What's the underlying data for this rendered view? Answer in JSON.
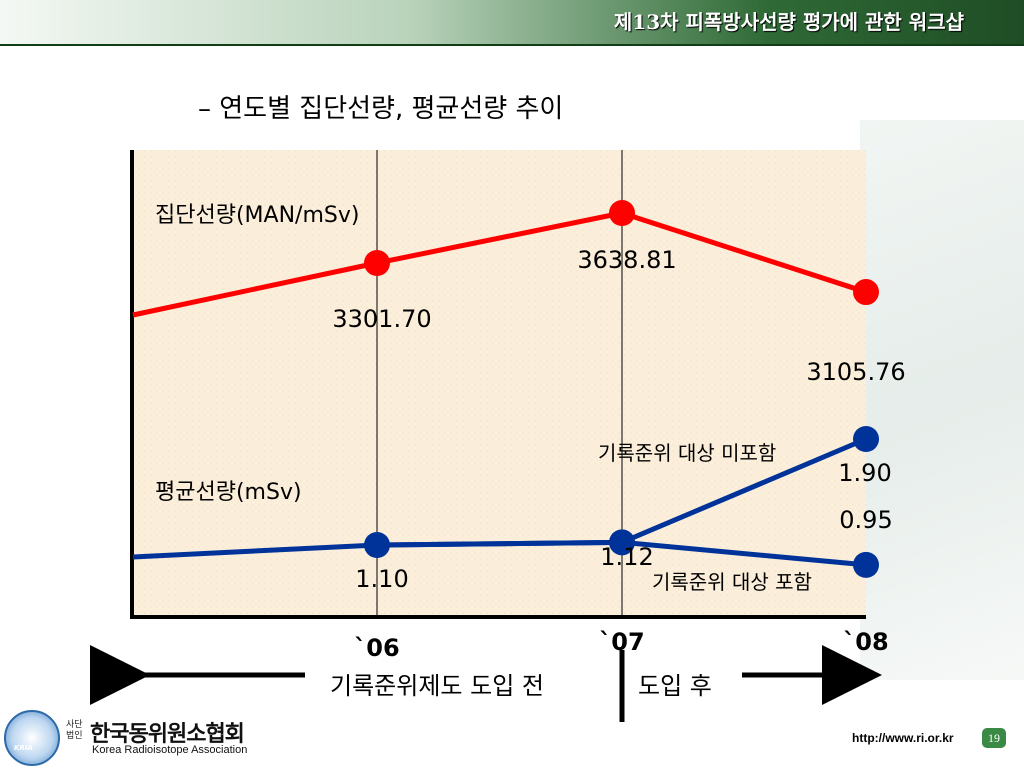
{
  "header": {
    "title": "제13차 피폭방사선량 평가에 관한 워크샵"
  },
  "subtitle": "–  연도별 집단선량, 평균선량 추이",
  "chart_data": {
    "type": "line",
    "categories": [
      "`06",
      "`07",
      "`08"
    ],
    "series": [
      {
        "name": "집단선량(MAN/mSv)",
        "values": [
          3301.7,
          3638.81,
          3105.76
        ],
        "labels": [
          "3301.70",
          "3638.81",
          "3105.76"
        ],
        "color": "#ff0000"
      },
      {
        "name": "평균선량(mSv)",
        "values": [
          1.1,
          1.12,
          1.9
        ],
        "labels": [
          "1.10",
          "1.12",
          "1.90"
        ],
        "color": "#00339a",
        "branch_label": "기록준위 대상 미포함"
      },
      {
        "name": "평균선량(mSv)",
        "values": [
          1.1,
          1.12,
          0.95
        ],
        "labels": [
          "",
          "",
          "0.95"
        ],
        "color": "#00339a",
        "branch_label": "기록준위 대상 포함"
      }
    ],
    "periods": {
      "before": "기록준위제도 도입 전",
      "after": "도입 후"
    }
  },
  "footer": {
    "logo_small": "사단법인",
    "logo_kria": "KRIA",
    "org_ko": "한국동위원소협회",
    "org_en": "Korea Radioisotope Association",
    "url": "http://www.ri.or.kr",
    "page": "19"
  },
  "colors": {
    "plot_bg": "#fbeeda",
    "header_dark": "#1f4d25"
  }
}
